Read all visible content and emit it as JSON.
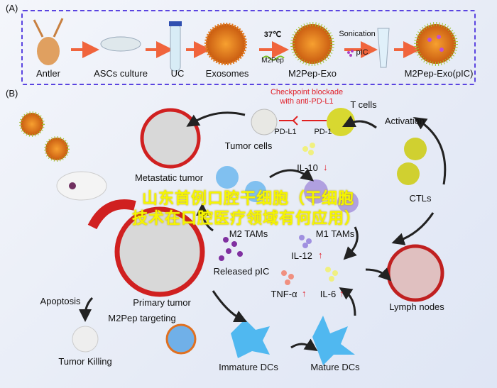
{
  "panel_a": {
    "label": "(A)",
    "steps": [
      "Antler",
      "ASCs culture",
      "UC",
      "Exosomes",
      "M2Pep-Exo",
      "M2Pep-Exo(pIC)"
    ],
    "temp": "37℃",
    "peptide": "M2Pep",
    "sonication": "Sonication",
    "pic": "pIC"
  },
  "panel_b": {
    "label": "(B)",
    "checkpoint_1": "Checkpoint blockade",
    "checkpoint_2": "with anti-PD-L1",
    "t_cells": "T cells",
    "tumor_cells": "Tumor cells",
    "pd_l1": "PD-L1",
    "pd_1": "PD-1",
    "activation": "Activation",
    "metastatic": "Metastatic tumor",
    "il10": "IL-10",
    "ctls": "CTLs",
    "m2": "M2 TAMs",
    "m1": "M1 TAMs",
    "il12": "IL-12",
    "released": "Released pIC",
    "primary": "Primary tumor",
    "tnf": "TNF-α",
    "il6": "IL-6",
    "lymph": "Lymph nodes",
    "apoptosis": "Apoptosis",
    "targeting": "M2Pep targeting",
    "killing": "Tumor Killing",
    "immature": "Immature DCs",
    "mature": "Mature DCs",
    "up": "↑",
    "down": "↓"
  },
  "watermark": {
    "line1": "山东首例口腔干细胞（干细胞",
    "line2": "技术在口腔医疗领域有何应用）"
  },
  "colors": {
    "box": "#5a44e0",
    "arrow_a": "#f0643c",
    "red_text": "#e0202a",
    "watermark": "#f5f500"
  }
}
